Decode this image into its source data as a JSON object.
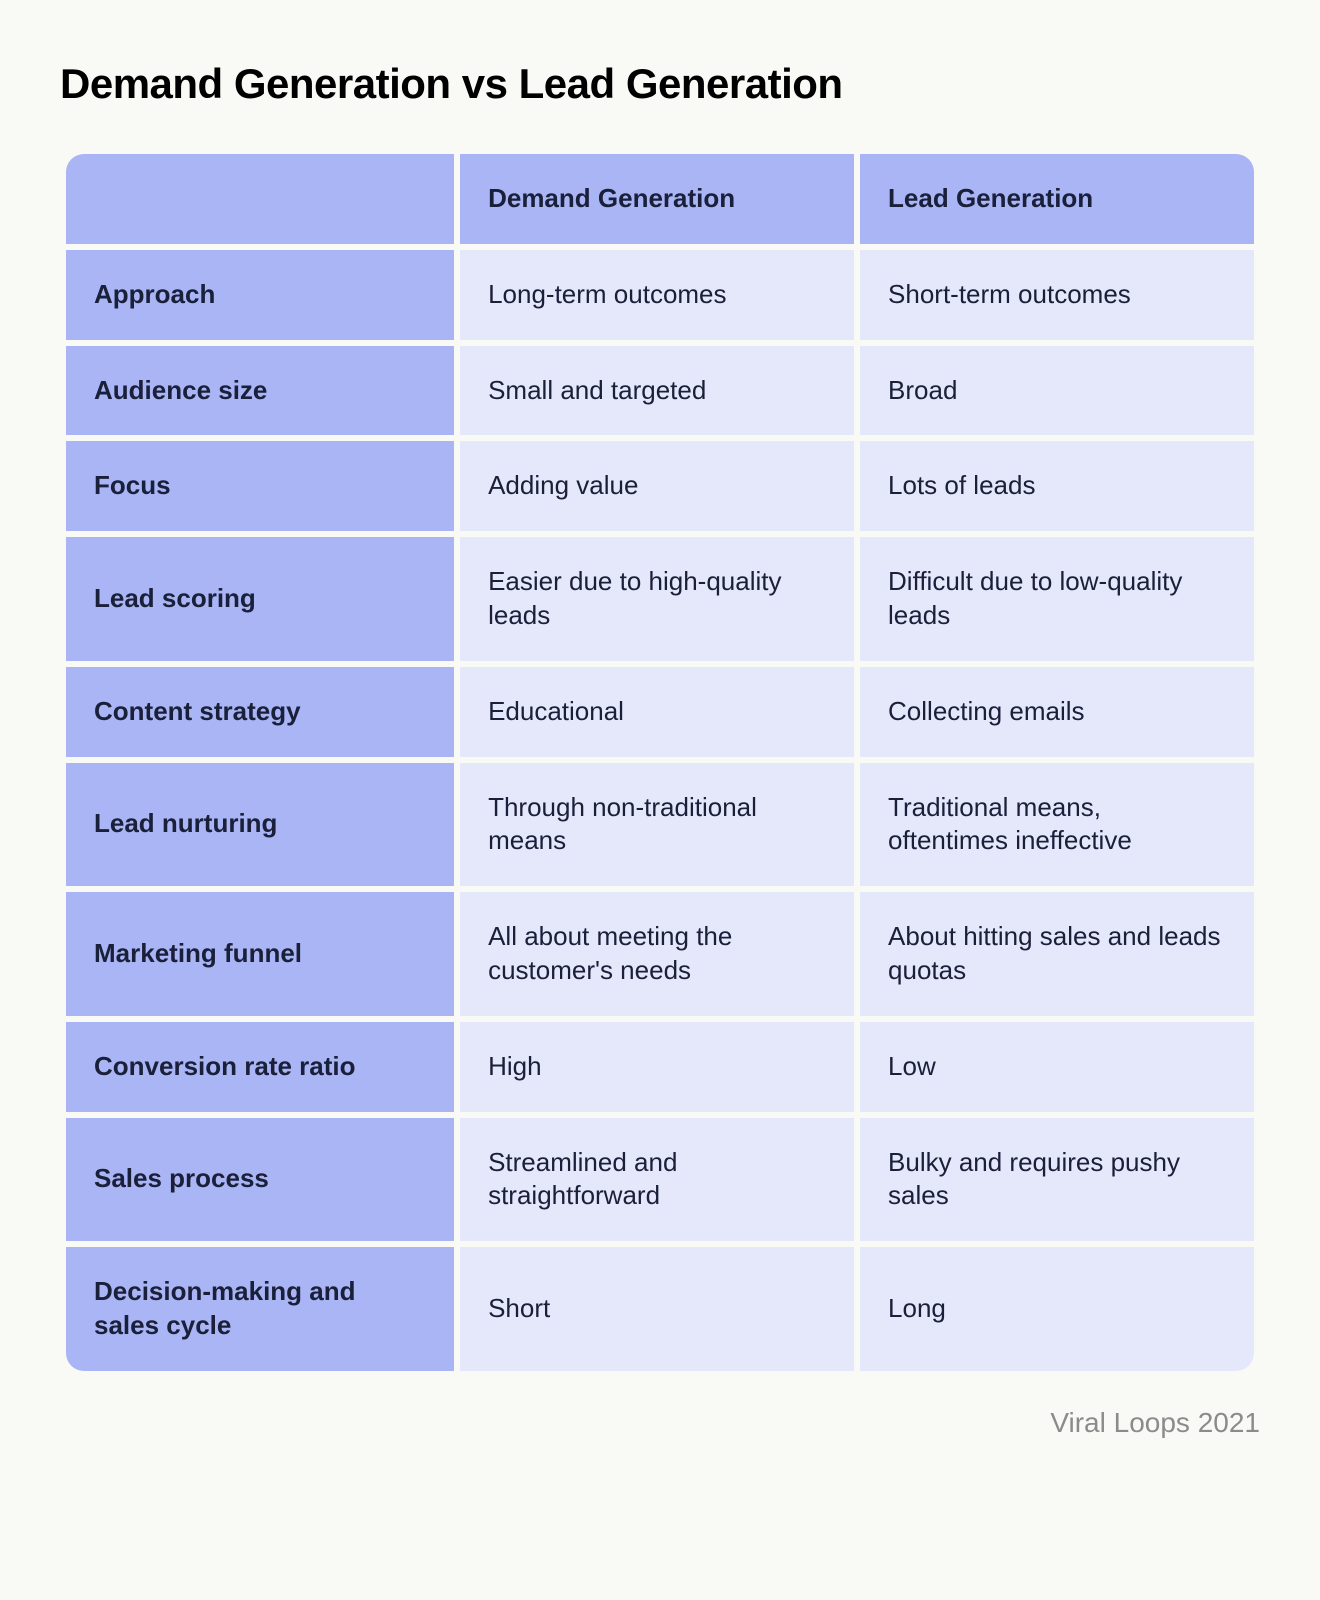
{
  "title": "Demand Generation vs Lead Generation",
  "attribution": "Viral Loops 2021",
  "table": {
    "type": "table",
    "columns": [
      "",
      "Demand Generation",
      "Lead Generation"
    ],
    "rows": [
      {
        "label": "Approach",
        "demand": "Long-term outcomes",
        "lead": "Short-term outcomes"
      },
      {
        "label": "Audience size",
        "demand": "Small and targeted",
        "lead": "Broad"
      },
      {
        "label": "Focus",
        "demand": "Adding value",
        "lead": "Lots of leads"
      },
      {
        "label": "Lead scoring",
        "demand": "Easier due to high-quality leads",
        "lead": "Difficult due to low-quality leads"
      },
      {
        "label": "Content strategy",
        "demand": "Educational",
        "lead": "Collecting emails"
      },
      {
        "label": "Lead nurturing",
        "demand": "Through non-traditional means",
        "lead": "Traditional means, oftentimes ineffective"
      },
      {
        "label": "Marketing funnel",
        "demand": "All about meeting the customer's needs",
        "lead": "About hitting sales and leads quotas"
      },
      {
        "label": "Conversion rate ratio",
        "demand": "High",
        "lead": "Low"
      },
      {
        "label": "Sales process",
        "demand": "Streamlined and straightforward",
        "lead": "Bulky and requires pushy sales"
      },
      {
        "label": "Decision-making and sales cycle",
        "demand": "Short",
        "lead": "Long"
      }
    ],
    "styling": {
      "background_color": "#f9f9f6",
      "header_bg": "#a9b5f4",
      "row_label_bg": "#a9b5f4",
      "data_cell_bg": "#e5e7fb",
      "text_color": "#1a1f3a",
      "title_color": "#000000",
      "attribution_color": "#8b8b8b",
      "border_radius": 18,
      "cell_spacing": 6,
      "title_fontsize": 42,
      "header_fontsize": 26,
      "cell_fontsize": 26,
      "attribution_fontsize": 28,
      "title_fontweight": 800,
      "header_fontweight": 700,
      "row_label_fontweight": 700,
      "data_fontweight": 400
    }
  }
}
